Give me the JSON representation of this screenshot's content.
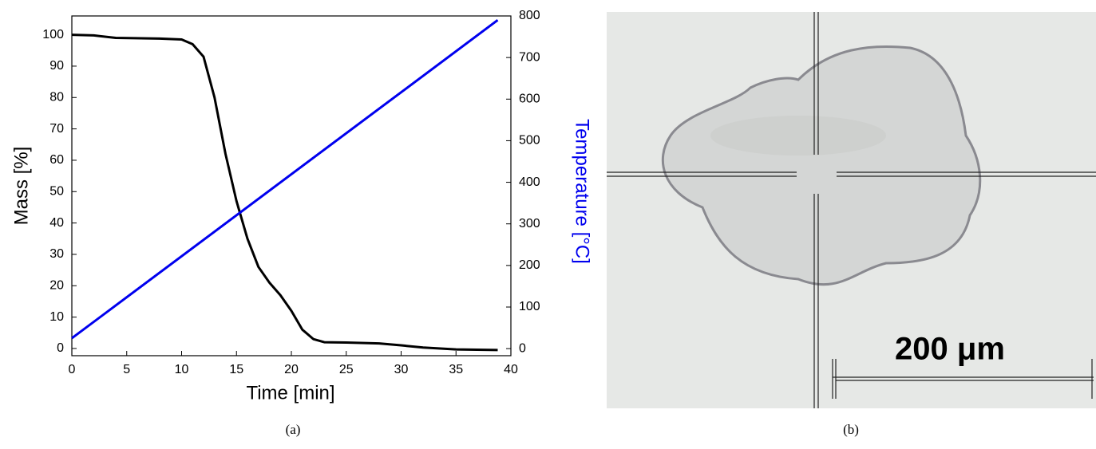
{
  "chart_data": {
    "type": "line",
    "xlabel": "Time [min]",
    "ylabel": "Mass [%]",
    "y2label": "Temperature [°C]",
    "caption": "(a)",
    "xlim": [
      0,
      40
    ],
    "xticks": [
      0,
      5,
      10,
      15,
      20,
      25,
      30,
      35,
      40
    ],
    "ylim": [
      -2.3,
      106
    ],
    "yticks": [
      0,
      10,
      20,
      30,
      40,
      50,
      60,
      70,
      80,
      90,
      100
    ],
    "y2lim": [
      -17,
      800
    ],
    "y2ticks": [
      0,
      100,
      200,
      300,
      400,
      500,
      600,
      700,
      800
    ],
    "series": [
      {
        "color": "#000000",
        "x": [
          0,
          2,
          4,
          8,
          10,
          11,
          12,
          13,
          14,
          15,
          16,
          17,
          18,
          19,
          20,
          21,
          22,
          23,
          25,
          28,
          30,
          32,
          35,
          38.8
        ],
        "values": [
          100,
          99.8,
          99,
          98.8,
          98.5,
          97,
          93,
          80,
          62,
          47,
          35,
          26,
          21,
          17,
          12,
          6,
          3,
          2,
          1.9,
          1.6,
          1,
          0.3,
          -0.3,
          -0.5
        ]
      },
      {
        "color": "#0000ee",
        "axis": "y2",
        "x": [
          0,
          38.8
        ],
        "values": [
          25,
          790
        ]
      }
    ]
  },
  "image": {
    "scale_label": "200 μm",
    "caption": "(b)"
  }
}
